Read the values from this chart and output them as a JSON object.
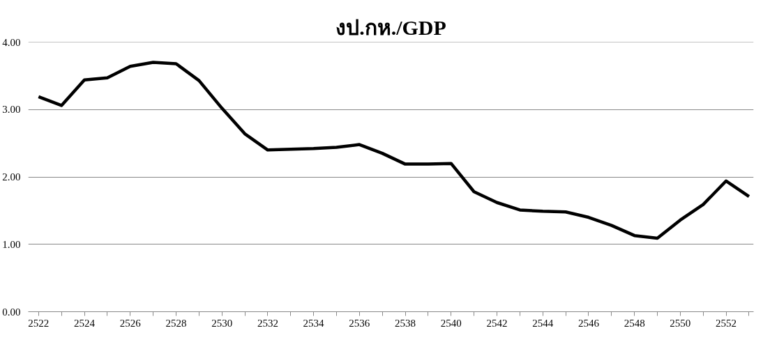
{
  "chart_data": {
    "type": "line",
    "title": "งป.กห./GDP",
    "categories": [
      "2522",
      null,
      "2524",
      null,
      "2526",
      null,
      "2528",
      null,
      "2530",
      null,
      "2532",
      null,
      "2534",
      null,
      "2536",
      null,
      "2538",
      null,
      "2540",
      null,
      "2542",
      null,
      "2544",
      null,
      "2546",
      null,
      "2548",
      null,
      "2550",
      null,
      "2552",
      null
    ],
    "series": [
      {
        "color": "#000000",
        "values": [
          3.19,
          3.06,
          3.44,
          3.47,
          3.64,
          3.7,
          3.68,
          3.43,
          3.02,
          2.64,
          2.4,
          2.41,
          2.42,
          2.44,
          2.48,
          2.35,
          2.19,
          2.19,
          2.2,
          1.78,
          1.62,
          1.51,
          1.49,
          1.48,
          1.4,
          1.28,
          1.13,
          1.09,
          1.36,
          1.59,
          1.94,
          1.71
        ]
      }
    ],
    "ylim": [
      0,
      4
    ],
    "yticks": [
      {
        "value": 0,
        "label": "0.00"
      },
      {
        "value": 1,
        "label": "1.00"
      },
      {
        "value": 2,
        "label": "2.00"
      },
      {
        "value": 3,
        "label": "3.00"
      },
      {
        "value": 4,
        "label": "4.00"
      }
    ],
    "grid": "y",
    "marker": "none",
    "line_style": "solid"
  }
}
